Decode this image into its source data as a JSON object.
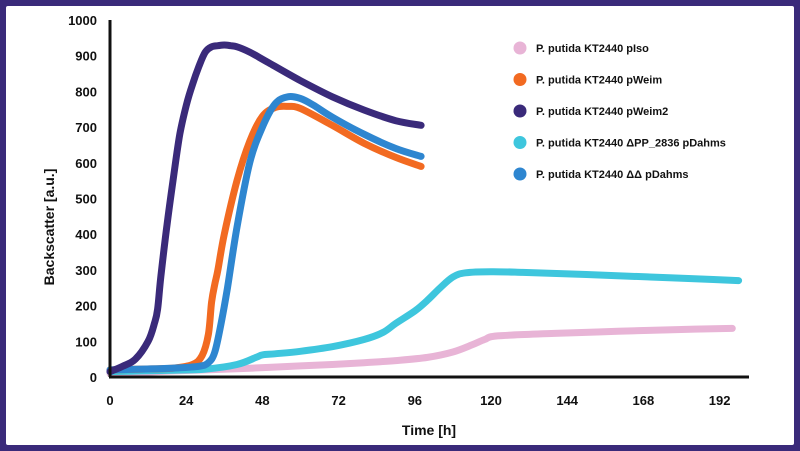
{
  "chart_data": {
    "type": "line",
    "title": "",
    "xlabel": "Time [h]",
    "ylabel": "Backscatter [a.u.]",
    "xlim": [
      0,
      200
    ],
    "ylim": [
      0,
      1000
    ],
    "xticks": [
      0,
      24,
      48,
      72,
      96,
      120,
      144,
      168,
      192
    ],
    "yticks": [
      0,
      100,
      200,
      300,
      400,
      500,
      600,
      700,
      800,
      900,
      1000
    ],
    "grid": false,
    "legend_position": "top-right",
    "series": [
      {
        "name": "P. putida KT2440 pIso",
        "color": "#e8b4d6",
        "x": [
          0,
          10,
          20,
          30,
          40,
          50,
          60,
          70,
          80,
          90,
          100,
          108,
          114,
          118,
          122,
          140,
          160,
          180,
          196
        ],
        "y": [
          10,
          13,
          17,
          20,
          23,
          27,
          31,
          35,
          40,
          46,
          55,
          70,
          90,
          105,
          115,
          122,
          128,
          133,
          136
        ]
      },
      {
        "name": "P. putida KT2440 pWeim",
        "color": "#f26a21",
        "x": [
          0,
          10,
          20,
          26,
          29,
          31,
          32,
          33,
          34,
          36,
          40,
          44,
          48,
          52,
          56,
          60,
          70,
          80,
          90,
          98
        ],
        "y": [
          20,
          22,
          25,
          35,
          60,
          120,
          210,
          260,
          300,
          400,
          550,
          660,
          730,
          755,
          758,
          752,
          705,
          655,
          615,
          590
        ]
      },
      {
        "name": "P. putida KT2440 pWeim2",
        "color": "#3a2a7a",
        "x": [
          0,
          4,
          8,
          12,
          14,
          15,
          16,
          18,
          20,
          22,
          24,
          26,
          28,
          30,
          32,
          34,
          36,
          38,
          40,
          44,
          50,
          60,
          70,
          80,
          90,
          98
        ],
        "y": [
          15,
          30,
          50,
          100,
          150,
          190,
          280,
          430,
          560,
          680,
          760,
          820,
          870,
          910,
          925,
          928,
          930,
          928,
          925,
          910,
          880,
          830,
          785,
          748,
          718,
          705
        ]
      },
      {
        "name": "P. putida KT2440 ΔPP_2836 pDahms",
        "color": "#3ec6dd",
        "x": [
          0,
          10,
          20,
          30,
          40,
          46,
          48,
          52,
          60,
          70,
          80,
          86,
          90,
          96,
          100,
          104,
          108,
          112,
          120,
          130,
          150,
          170,
          190,
          198
        ],
        "y": [
          15,
          17,
          19,
          22,
          35,
          55,
          62,
          65,
          72,
          85,
          105,
          125,
          150,
          185,
          215,
          250,
          280,
          292,
          295,
          293,
          287,
          280,
          273,
          270
        ]
      },
      {
        "name": "P. putida KT2440 ΔΔ pDahms",
        "color": "#2e86d0",
        "x": [
          0,
          10,
          20,
          28,
          31,
          33,
          35,
          37,
          40,
          44,
          48,
          52,
          56,
          60,
          64,
          70,
          80,
          90,
          98
        ],
        "y": [
          20,
          22,
          25,
          30,
          40,
          70,
          150,
          250,
          420,
          600,
          700,
          765,
          785,
          780,
          762,
          728,
          680,
          640,
          618
        ]
      }
    ],
    "legend": [
      "P. putida KT2440 pIso",
      "P. putida KT2440 pWeim",
      "P. putida KT2440 pWeim2",
      "P. putida KT2440 ΔPP_2836 pDahms",
      "P. putida KT2440 ΔΔ pDahms"
    ]
  }
}
